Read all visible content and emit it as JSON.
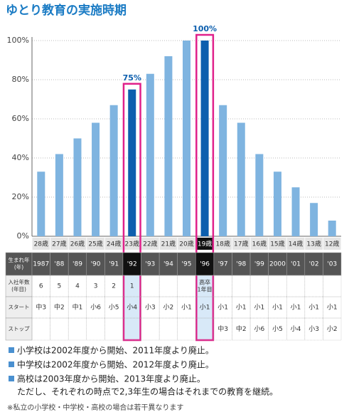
{
  "title": "ゆとり教育の実施時期",
  "chart_data": {
    "type": "bar",
    "categories": [
      "28歳",
      "27歳",
      "26歳",
      "25歳",
      "24歳",
      "23歳",
      "22歳",
      "21歳",
      "20歳",
      "19歳",
      "18歳",
      "17歳",
      "16歳",
      "15歳",
      "14歳",
      "13歳",
      "12歳"
    ],
    "values": [
      33,
      42,
      50,
      58,
      67,
      75,
      83,
      92,
      100,
      100,
      67,
      58,
      42,
      33,
      25,
      17,
      8
    ],
    "value_labels": [
      null,
      null,
      null,
      null,
      null,
      "75%",
      null,
      null,
      null,
      "100%",
      null,
      null,
      null,
      null,
      null,
      null,
      null
    ],
    "colors": [
      "#7fb4e0",
      "#7fb4e0",
      "#7fb4e0",
      "#7fb4e0",
      "#7fb4e0",
      "#0d5fae",
      "#7fb4e0",
      "#7fb4e0",
      "#7fb4e0",
      "#0d5fae",
      "#7fb4e0",
      "#7fb4e0",
      "#7fb4e0",
      "#7fb4e0",
      "#7fb4e0",
      "#7fb4e0",
      "#7fb4e0"
    ],
    "ylim": [
      0,
      100
    ],
    "yticks": [
      {
        "value": 0,
        "label": "0%"
      },
      {
        "value": 20,
        "label": "20%"
      },
      {
        "value": 40,
        "label": "40%"
      },
      {
        "value": 60,
        "label": "60%"
      },
      {
        "value": 80,
        "label": "80%"
      },
      {
        "value": 100,
        "label": "100%"
      }
    ],
    "grid": true
  },
  "table": {
    "row_headers": [
      [
        "生まれ年",
        "(年)"
      ],
      [
        "入社年数",
        "(年目)"
      ],
      [
        "スタート"
      ],
      [
        "ストップ"
      ]
    ],
    "rows": [
      [
        "1987",
        "'88",
        "'89",
        "'90",
        "'91",
        "'92",
        "'93",
        "'94",
        "'95",
        "'96",
        "'97",
        "'98",
        "'99",
        "2000",
        "'01",
        "'02",
        "'03"
      ],
      [
        6,
        5,
        4,
        3,
        2,
        1,
        null,
        null,
        null,
        [
          "高卒",
          "1年目"
        ],
        null,
        null,
        null,
        null,
        null,
        null,
        null
      ],
      [
        "中3",
        "中2",
        "中1",
        "小6",
        "小5",
        "小4",
        "小3",
        "小2",
        "小1",
        "小1",
        "小1",
        "小1",
        "小1",
        "小1",
        "小1",
        "小1",
        "小1"
      ],
      [
        null,
        null,
        null,
        null,
        null,
        null,
        null,
        null,
        null,
        null,
        "中3",
        "中2",
        "小6",
        "小5",
        "小4",
        "小3",
        "小2"
      ]
    ]
  },
  "notes": [
    "小学校は2002年度から開始、2011年度より廃止。",
    "中学校は2002年度から開始、2012年度より廃止。",
    "高校は2003年度から開始、2013年度より廃止。",
    "ただし、それぞれの時点で2,3年生の場合はそれまでの教育を継続。"
  ],
  "footnote": "※私立の小学校・中学校・高校の場合は若干異なります"
}
